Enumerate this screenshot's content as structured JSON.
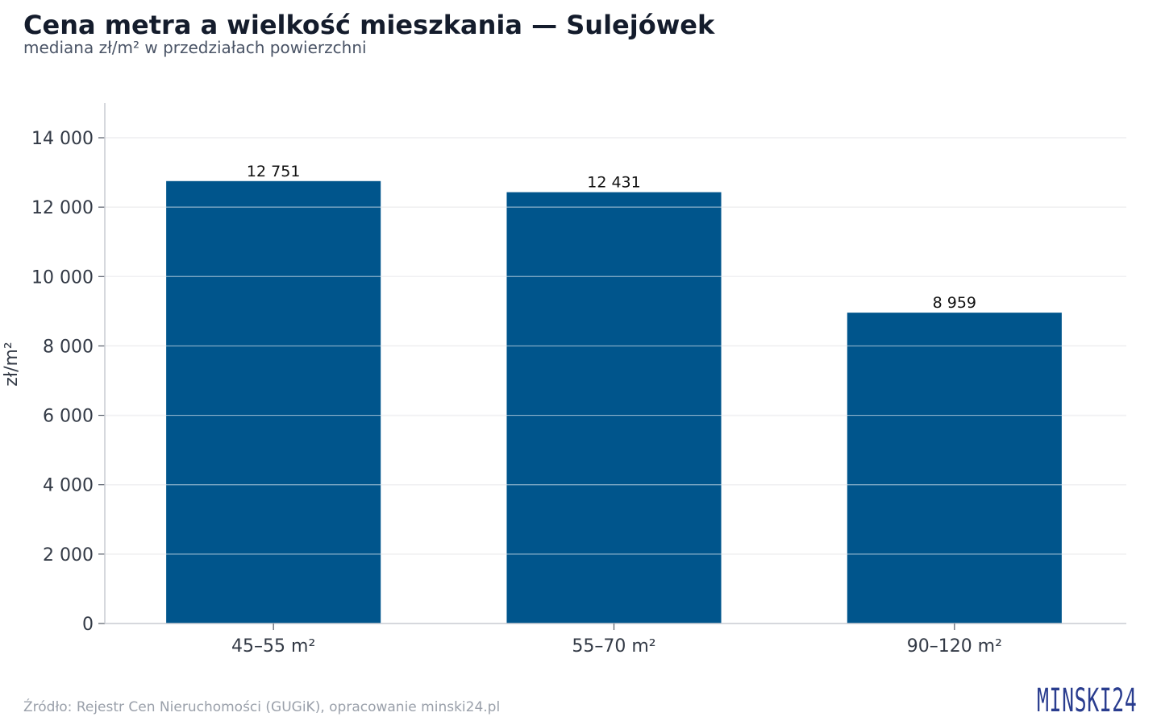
{
  "header": {
    "title": "Cena metra a wielkość mieszkania — Sulejówek",
    "subtitle": "mediana zł/m² w przedziałach powierzchni"
  },
  "footer": {
    "source": "Źródło: Rejestr Cen Nieruchomości (GUGiK), opracowanie minski24.pl",
    "logo_text": "MINSKI24"
  },
  "colors": {
    "bar": "#00558c",
    "grid": "#e3e3e6",
    "axis": "#c9ccd2",
    "logo": "#2a3d8f"
  },
  "chart_data": {
    "type": "bar",
    "title": "Cena metra a wielkość mieszkania — Sulejówek",
    "subtitle": "mediana zł/m² w przedziałach powierzchni",
    "xlabel": "",
    "ylabel": "zł/m²",
    "categories": [
      "45–55 m²",
      "55–70 m²",
      "90–120 m²"
    ],
    "values": [
      12751,
      12431,
      8959
    ],
    "value_labels": [
      "12 751",
      "12 431",
      "8 959"
    ],
    "ylim": [
      0,
      15000
    ],
    "yticks": [
      0,
      2000,
      4000,
      6000,
      8000,
      10000,
      12000,
      14000
    ],
    "ytick_labels": [
      "0",
      "2 000",
      "4 000",
      "6 000",
      "8 000",
      "10 000",
      "12 000",
      "14 000"
    ],
    "grid": true,
    "legend": "none"
  }
}
